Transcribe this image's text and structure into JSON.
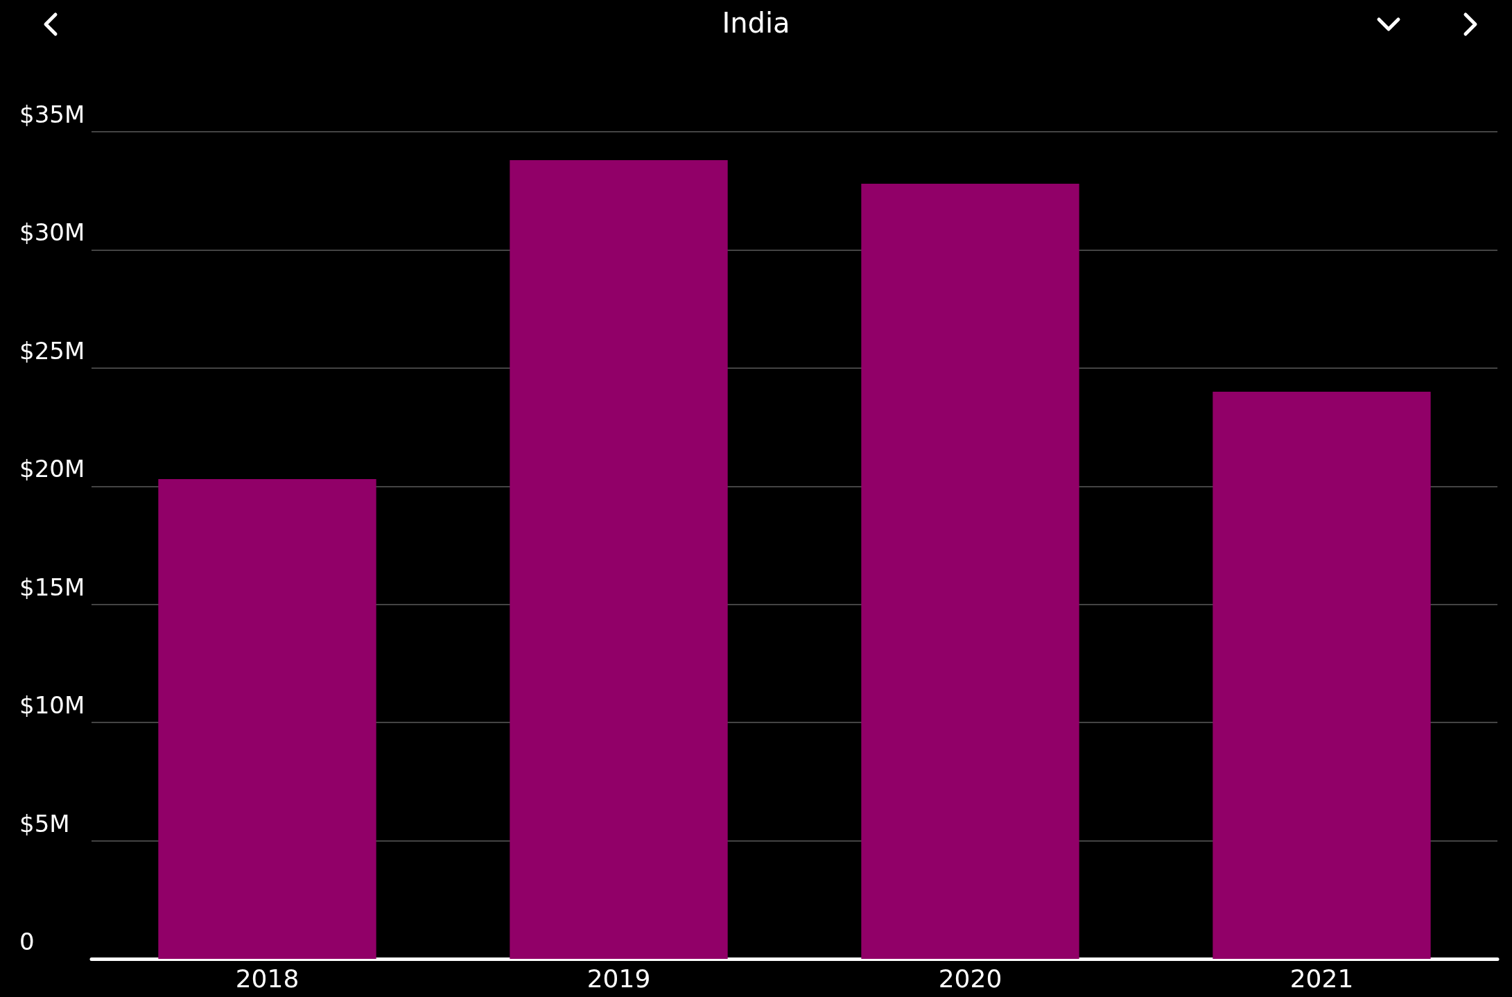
{
  "chart_data": {
    "type": "bar",
    "title": "India",
    "categories": [
      "2018",
      "2019",
      "2020",
      "2021"
    ],
    "series": [
      {
        "color": "#910068",
        "values": [
          20.3,
          33.8,
          32.8,
          24.0
        ]
      }
    ],
    "ylim": [
      0,
      35
    ],
    "yticks": [
      {
        "value": 0,
        "label": "0"
      },
      {
        "value": 5,
        "label": "$5M"
      },
      {
        "value": 10,
        "label": "$10M"
      },
      {
        "value": 15,
        "label": "$15M"
      },
      {
        "value": 20,
        "label": "$20M"
      },
      {
        "value": 25,
        "label": "$25M"
      },
      {
        "value": 30,
        "label": "$30M"
      },
      {
        "value": 35,
        "label": "$35M"
      }
    ],
    "grid": "y"
  }
}
